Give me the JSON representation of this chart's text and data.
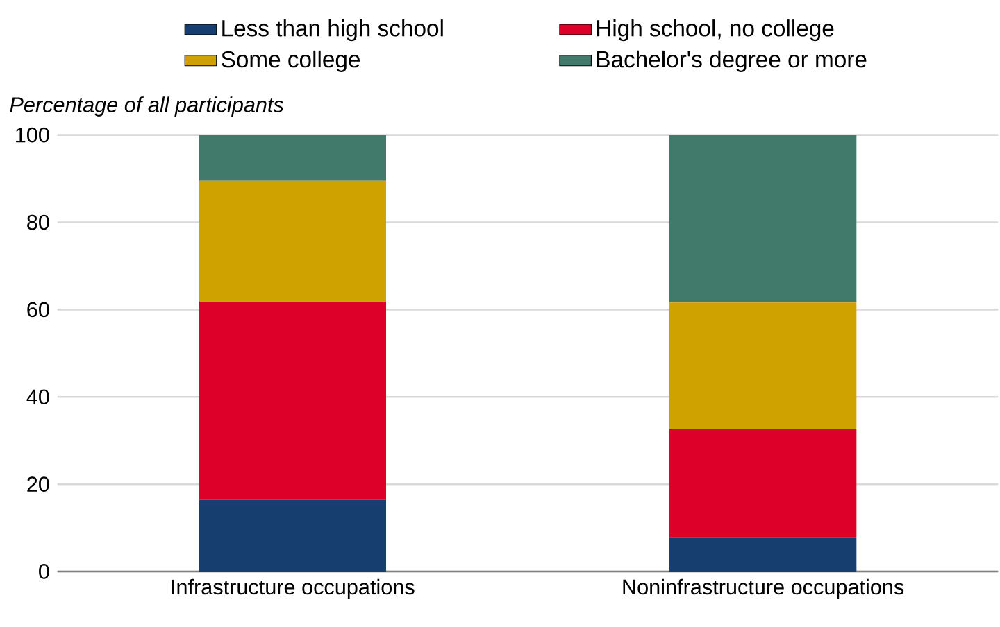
{
  "chart_data": {
    "type": "bar",
    "stacked": true,
    "ylabel": "Percentage of all participants",
    "categories": [
      "Infrastructure occupations",
      "Noninfrastructure occupations"
    ],
    "series": [
      {
        "name": "Less than high school",
        "color": "#163e6e",
        "values": [
          16.4,
          7.9
        ]
      },
      {
        "name": "High school, no college",
        "color": "#dd0029",
        "values": [
          45.4,
          24.7
        ]
      },
      {
        "name": "Some college",
        "color": "#cfa200",
        "values": [
          27.7,
          29.0
        ]
      },
      {
        "name": "Bachelor's degree or more",
        "color": "#41796b",
        "values": [
          10.5,
          38.4
        ]
      }
    ],
    "ylim": [
      0,
      100
    ],
    "yticks": [
      0,
      20,
      40,
      60,
      80,
      100
    ],
    "grid": "y",
    "legend": "top"
  }
}
